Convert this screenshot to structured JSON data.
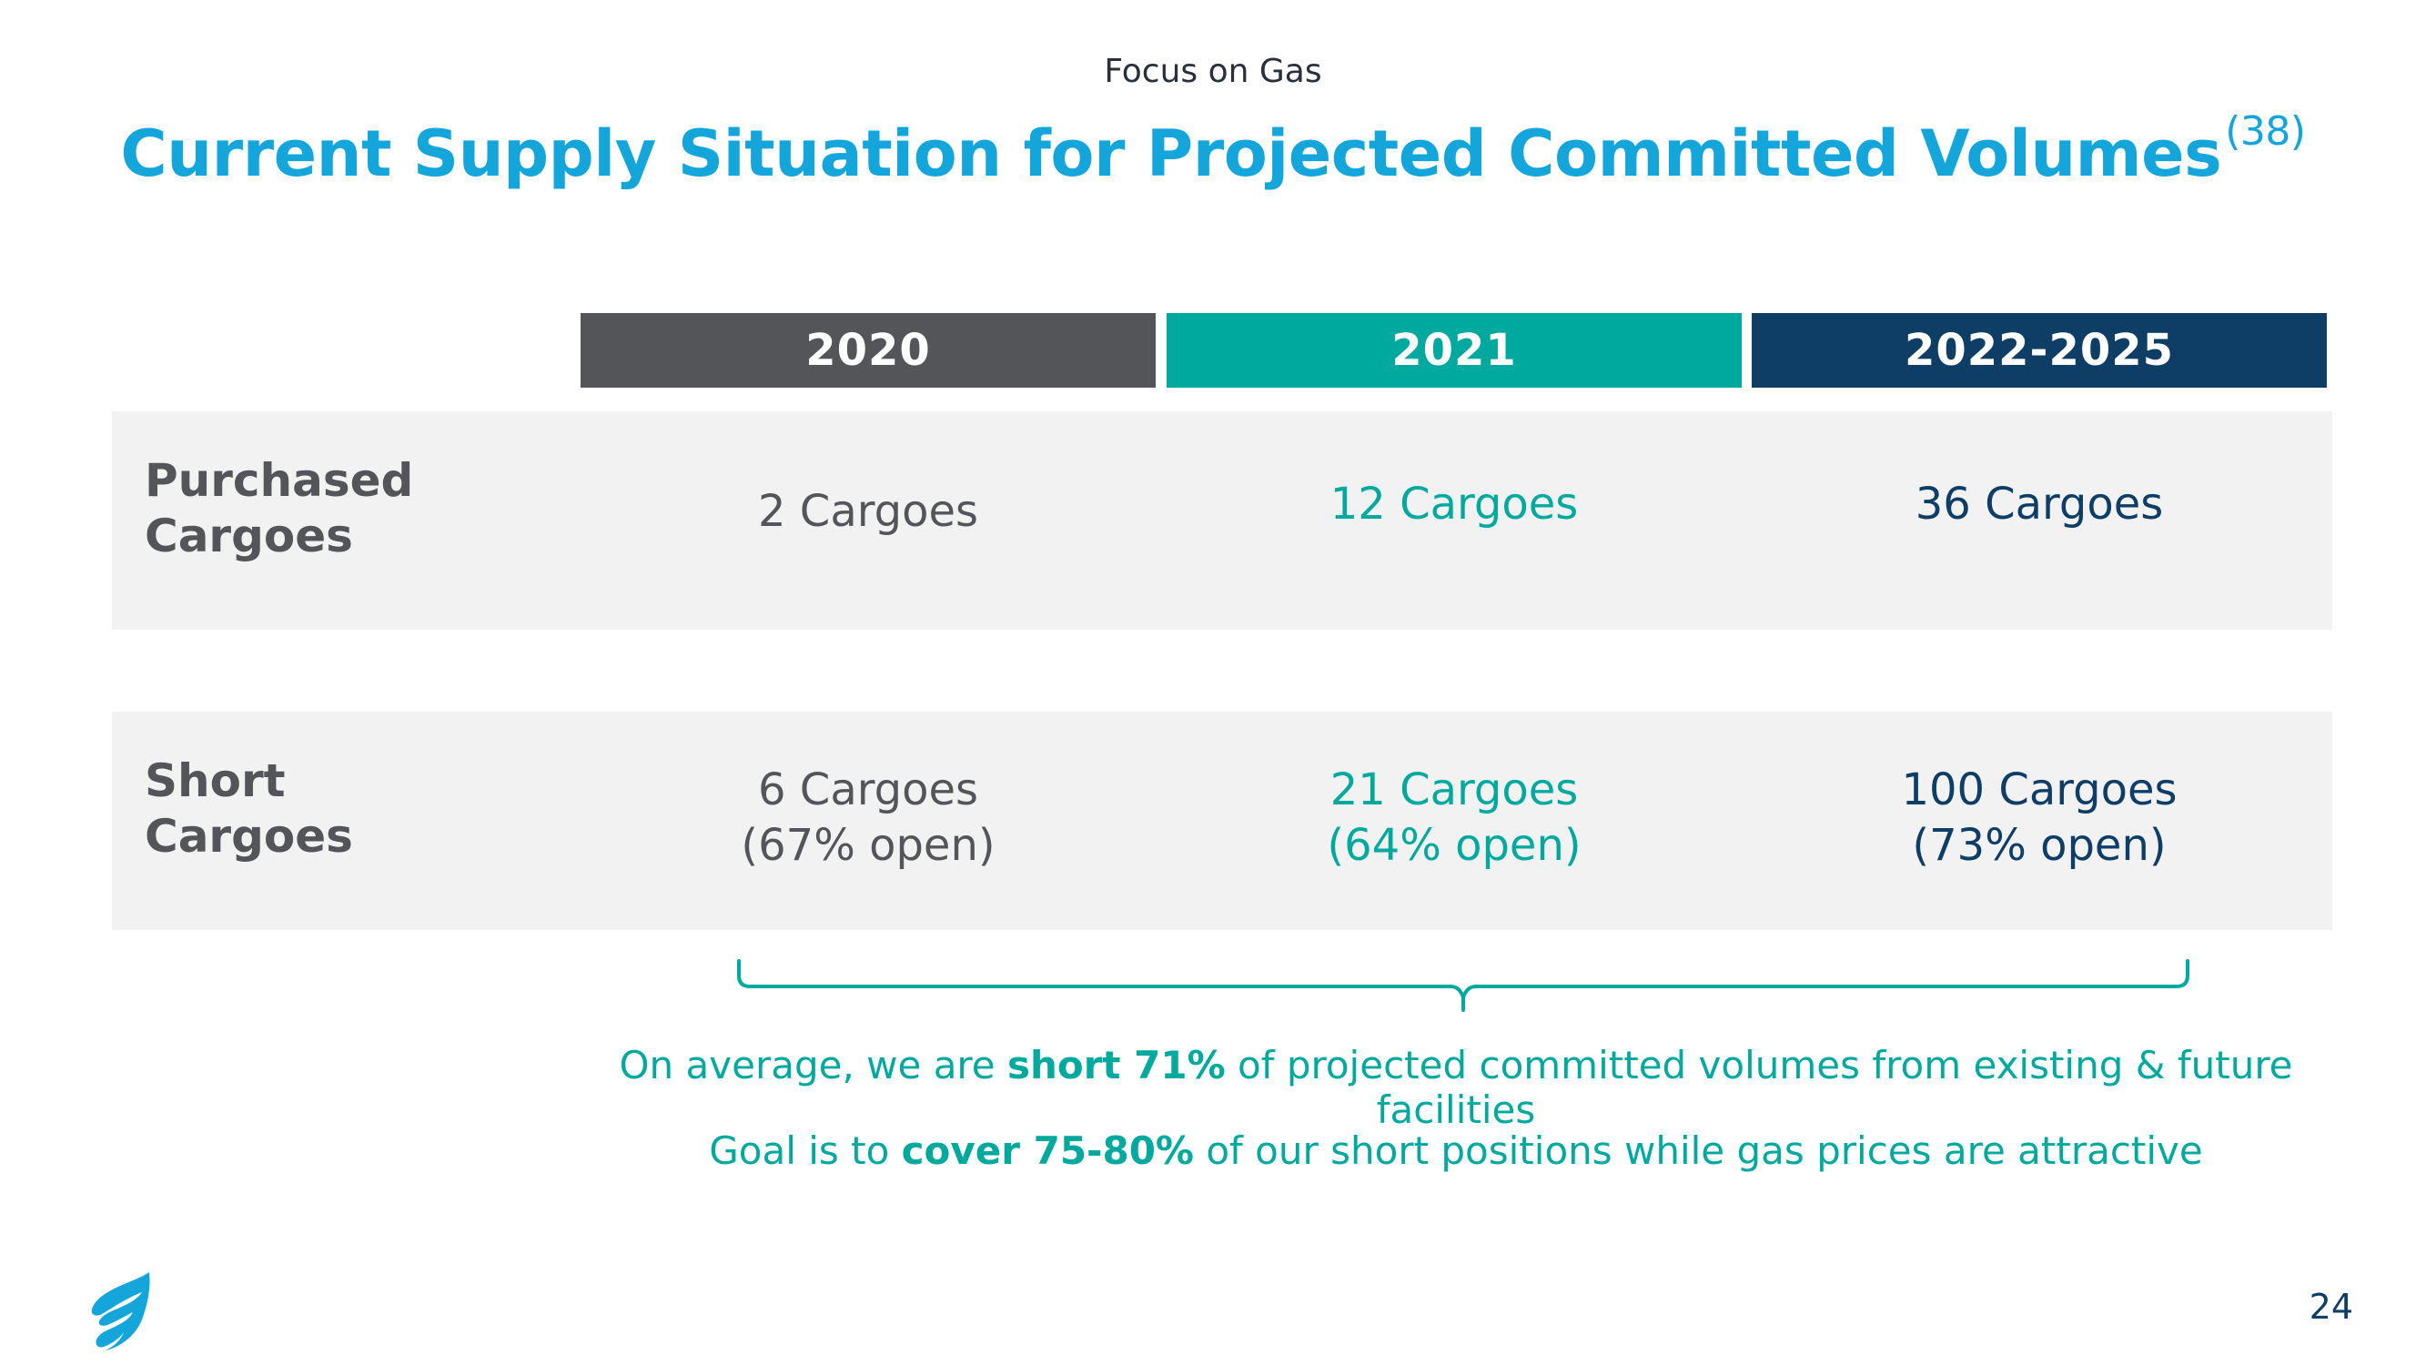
{
  "header": {
    "kicker": "Focus on Gas",
    "title": "Current Supply Situation for Projected Committed Volumes",
    "title_footnote": "(38)"
  },
  "table": {
    "columns": [
      "2020",
      "2021",
      "2022-2025"
    ],
    "rows": [
      {
        "label": "Purchased\nCargoes",
        "cells": [
          "2 Cargoes",
          "12 Cargoes",
          "36 Cargoes"
        ]
      },
      {
        "label": "Short\nCargoes",
        "cells": [
          "6 Cargoes\n(67% open)",
          "21 Cargoes\n(64% open)",
          "100 Cargoes\n(73% open)"
        ]
      }
    ]
  },
  "notes": {
    "line1": {
      "pre": "On average, we are ",
      "bold": "short 71%",
      "post": " of projected committed volumes from existing & future facilities"
    },
    "line2": {
      "pre": "Goal is to ",
      "bold": "cover 75-80%",
      "post": " of our short positions while gas prices are attractive"
    }
  },
  "footer": {
    "page_number": "24",
    "logo_icon": "flame-logo-icon"
  },
  "colors": {
    "title_blue": "#14a6db",
    "col_2020": "#545558",
    "col_2021": "#00a99d",
    "col_2022": "#0e3e66",
    "row_bg": "#f2f2f2"
  }
}
